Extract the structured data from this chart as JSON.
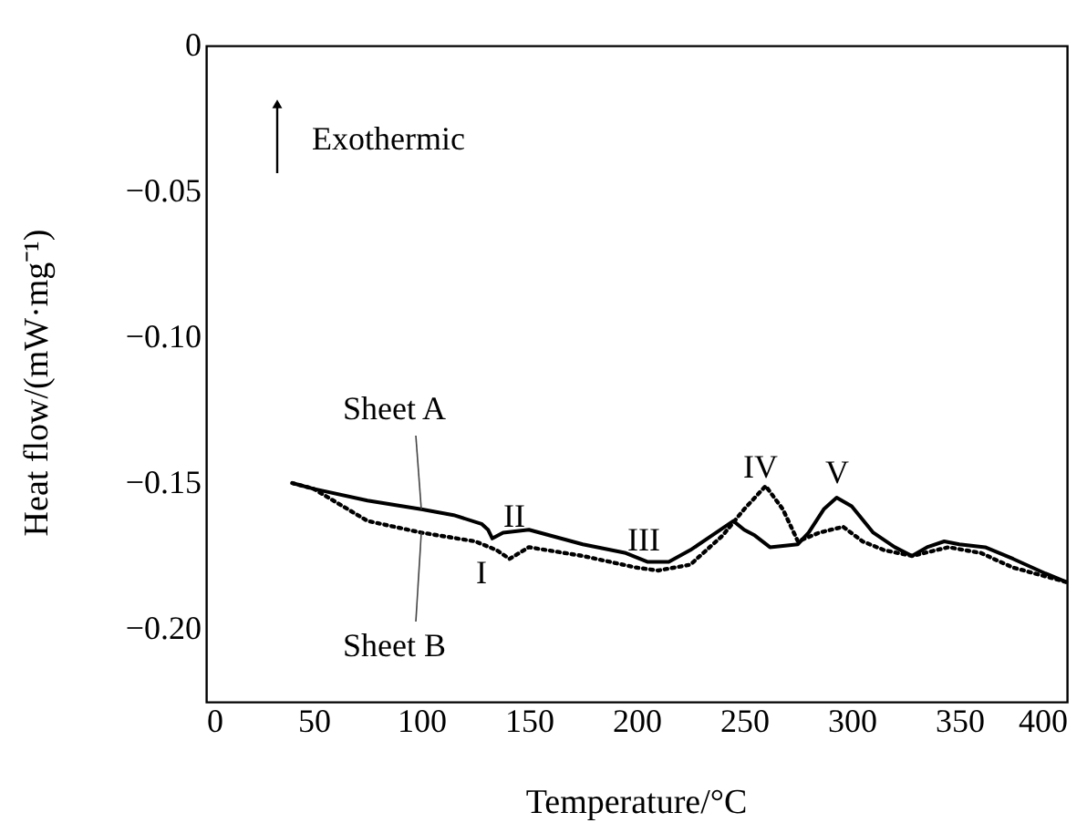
{
  "chart_data": {
    "type": "line",
    "xlabel": "Temperature/°C",
    "ylabel": "Heat flow/(mW·mg⁻¹)",
    "xlim": [
      0,
      400
    ],
    "xticks": [
      0,
      50,
      100,
      150,
      200,
      250,
      300,
      350,
      400
    ],
    "ylim": [
      -0.225,
      0
    ],
    "yticks": [
      {
        "value": 0,
        "label": "0"
      },
      {
        "value": -0.05,
        "label": "−0.05"
      },
      {
        "value": -0.1,
        "label": "−0.10"
      },
      {
        "value": -0.15,
        "label": "−0.15"
      },
      {
        "value": -0.2,
        "label": "−0.20"
      }
    ],
    "grid": false,
    "legend": false,
    "marker": "none",
    "series": [
      {
        "name": "Sheet A",
        "color": "#000000",
        "line_style": "solid",
        "x": [
          40,
          50,
          75,
          100,
          115,
          128,
          131,
          133,
          138,
          150,
          175,
          195,
          205,
          215,
          225,
          235,
          245,
          250,
          255,
          262,
          275,
          280,
          287,
          293,
          300,
          310,
          320,
          328,
          335,
          343,
          350,
          362,
          375,
          390,
          400
        ],
        "values": [
          -0.15,
          -0.152,
          -0.156,
          -0.159,
          -0.161,
          -0.164,
          -0.166,
          -0.169,
          -0.167,
          -0.166,
          -0.171,
          -0.174,
          -0.177,
          -0.177,
          -0.173,
          -0.168,
          -0.163,
          -0.166,
          -0.168,
          -0.172,
          -0.171,
          -0.167,
          -0.159,
          -0.155,
          -0.158,
          -0.167,
          -0.172,
          -0.175,
          -0.172,
          -0.17,
          -0.171,
          -0.172,
          -0.176,
          -0.181,
          -0.184
        ]
      },
      {
        "name": "Sheet B",
        "color": "#000000",
        "line_style": "dotted",
        "x": [
          40,
          50,
          75,
          100,
          125,
          135,
          141,
          150,
          175,
          200,
          210,
          225,
          240,
          250,
          260,
          268,
          275,
          285,
          296,
          305,
          315,
          328,
          345,
          360,
          375,
          390,
          400
        ],
        "values": [
          -0.15,
          -0.152,
          -0.163,
          -0.167,
          -0.17,
          -0.173,
          -0.176,
          -0.172,
          -0.175,
          -0.179,
          -0.18,
          -0.178,
          -0.168,
          -0.159,
          -0.151,
          -0.159,
          -0.17,
          -0.167,
          -0.165,
          -0.17,
          -0.173,
          -0.175,
          -0.172,
          -0.174,
          -0.179,
          -0.182,
          -0.184
        ]
      }
    ],
    "annotations": [
      "Exothermic",
      "I",
      "II",
      "III",
      "IV",
      "V"
    ]
  }
}
